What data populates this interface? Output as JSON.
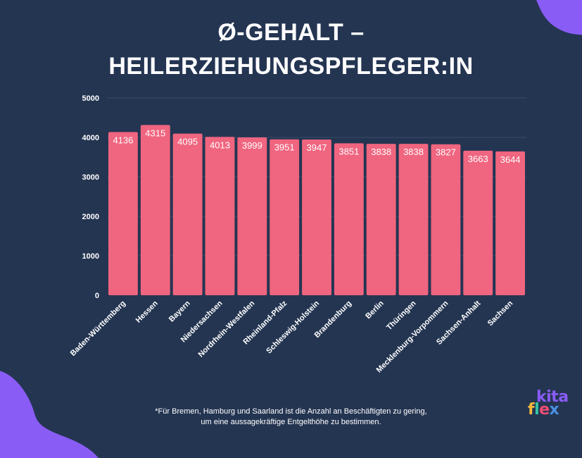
{
  "header": {
    "title_line1": "Ø-GEHALT –",
    "title_line2": "HEILERZIEHUNGSPFLEGER:IN"
  },
  "chart_data": {
    "type": "bar",
    "title": "Ø-GEHALT – HEILERZIEHUNGSPFLEGER:IN",
    "xlabel": "",
    "ylabel": "",
    "ylim": [
      0,
      5000
    ],
    "yticks": [
      0,
      1000,
      2000,
      3000,
      4000,
      5000
    ],
    "grid": true,
    "categories": [
      "Baden-Württemberg",
      "Hessen",
      "Bayern",
      "Niedersachsen",
      "Nordrhein-Westfalen",
      "Rheinland-Pfalz",
      "Schleswig-Holstein",
      "Brandenburg",
      "Berlin",
      "Thüringen",
      "Mecklenburg-Vorpommern",
      "Sachsen-Anhalt",
      "Sachsen"
    ],
    "values": [
      4136,
      4315,
      4095,
      4013,
      3999,
      3951,
      3947,
      3851,
      3838,
      3838,
      3827,
      3663,
      3644
    ]
  },
  "footnote": {
    "line1": "*Für Bremen, Hamburg und Saarland ist die Anzahl an Beschäftigten zu gering,",
    "line2": "um eine aussagekräftige Entgelthöhe zu bestimmen."
  },
  "logo": {
    "line1": "kita",
    "letters": [
      "f",
      "l",
      "e",
      "x"
    ]
  },
  "colors": {
    "background": "#243552",
    "bar": "#f0657f",
    "blob": "#8a5cf6",
    "grid": "#3a4a68",
    "text": "#ffffff"
  }
}
